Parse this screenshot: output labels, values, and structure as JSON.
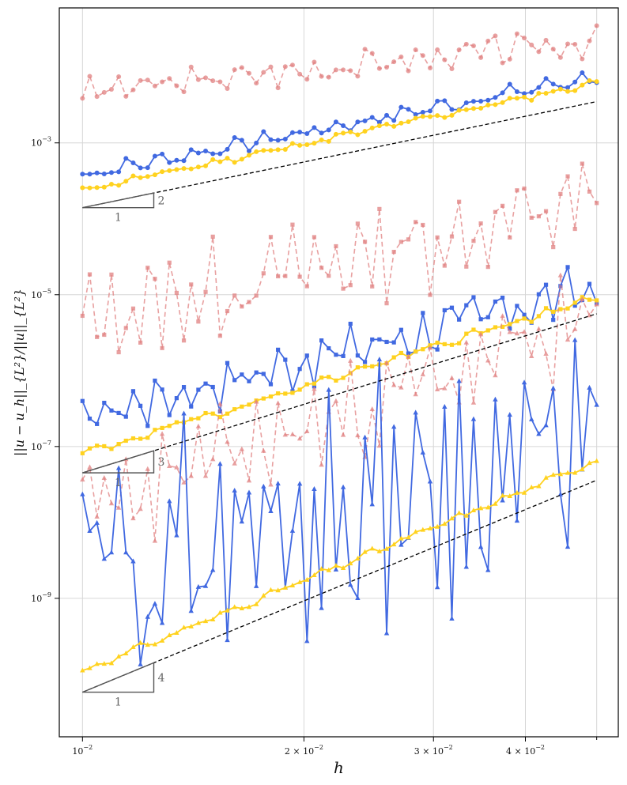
{
  "chart_data": {
    "type": "line",
    "title": "",
    "xlabel": "h",
    "ylabel": "||u − u_h||_{L²}/||u||_{L²}",
    "xscale": "log",
    "yscale": "log",
    "xlim": [
      0.0093,
      0.0535
    ],
    "ylim": [
      1.5e-11,
      0.06
    ],
    "grid": true,
    "colors": {
      "blue": "#4169e1",
      "yellow": "#ffd21f",
      "red": "#e08080",
      "ref": "#000000",
      "triangle": "#555555"
    },
    "x_ticks": [
      {
        "value": 0.01,
        "base": "10",
        "exp": "−2",
        "coef": ""
      },
      {
        "value": 0.02,
        "base": "10",
        "exp": "−2",
        "coef": "2 × "
      },
      {
        "value": 0.03,
        "base": "10",
        "exp": "−2",
        "coef": "3 × "
      },
      {
        "value": 0.04,
        "base": "10",
        "exp": "−2",
        "coef": "4 × "
      }
    ],
    "x_minor_ticks": [
      0.05
    ],
    "y_ticks": [
      {
        "value": 0.001,
        "base": "10",
        "exp": "−3"
      },
      {
        "value": 1e-05,
        "base": "10",
        "exp": "−5"
      },
      {
        "value": 1e-07,
        "base": "10",
        "exp": "−7"
      },
      {
        "value": 1e-09,
        "base": "10",
        "exp": "−9"
      }
    ],
    "n_points": 72,
    "x_start": 0.01,
    "x_end": 0.05,
    "series": [
      {
        "name": "red-circle",
        "marker": "circle",
        "color": "red",
        "dashed": true,
        "start": 0.0046,
        "end": 0.022,
        "slope": 0.9,
        "amp": 0.045,
        "freq": 1.8,
        "seed": 3
      },
      {
        "name": "blue-circle",
        "marker": "circle",
        "color": "blue",
        "dashed": false,
        "start": 0.00038,
        "end": 0.0075,
        "slope": 2,
        "amp": 0.025,
        "freq": 1.3,
        "seed": 7
      },
      {
        "name": "yellow-circle",
        "marker": "circle",
        "color": "yellow",
        "dashed": false,
        "start": 0.00024,
        "end": 0.0062,
        "slope": 2,
        "amp": 0.012,
        "freq": 1.1,
        "seed": 11
      },
      {
        "name": "red-square",
        "marker": "square",
        "color": "red",
        "dashed": true,
        "start": 4.5e-06,
        "end": 0.00017,
        "slope": 2.2,
        "amp": 0.15,
        "freq": 2.2,
        "seed": 13
      },
      {
        "name": "blue-square",
        "marker": "square",
        "color": "blue",
        "dashed": false,
        "start": 2.5e-07,
        "end": 1.2e-05,
        "slope": 3,
        "amp": 0.08,
        "freq": 1.9,
        "seed": 17
      },
      {
        "name": "yellow-square",
        "marker": "square",
        "color": "yellow",
        "dashed": false,
        "start": 8e-08,
        "end": 9.2e-06,
        "slope": 3,
        "amp": 0.015,
        "freq": 1.2,
        "seed": 19
      },
      {
        "name": "red-triangle",
        "marker": "triangle",
        "color": "red",
        "dashed": true,
        "start": 1.4e-08,
        "end": 4.5e-06,
        "slope": 3.4,
        "amp": 0.16,
        "freq": 2.4,
        "seed": 23
      },
      {
        "name": "blue-triangle",
        "marker": "triangle",
        "color": "blue",
        "dashed": false,
        "start": 2.2e-09,
        "end": 1.2e-07,
        "slope": 3,
        "amp": 0.38,
        "freq": 2.8,
        "seed": 29
      },
      {
        "name": "yellow-triangle",
        "marker": "triangle",
        "color": "yellow",
        "dashed": false,
        "start": 1.1e-10,
        "end": 6.5e-08,
        "slope": 4,
        "amp": 0.012,
        "freq": 1.0,
        "seed": 31
      }
    ],
    "reference_lines": [
      {
        "name": "ref-slope-2",
        "slope": 2,
        "x0": 0.01,
        "y0": 0.00014,
        "x1": 0.05,
        "y1": 0.0035
      },
      {
        "name": "ref-slope-3",
        "slope": 3,
        "x0": 0.01,
        "y0": 4.5e-08,
        "x1": 0.05,
        "y1": 5.6e-06
      },
      {
        "name": "ref-slope-4",
        "slope": 4,
        "x0": 0.01,
        "y0": 5.8e-11,
        "x1": 0.05,
        "y1": 3.6e-08
      }
    ],
    "slope_triangles": [
      {
        "name": "triangle-slope-2",
        "x0": 0.01,
        "x1": 0.0125,
        "y0": 0.00014,
        "slope": 2,
        "run_label": "1",
        "rise_label": "2"
      },
      {
        "name": "triangle-slope-3",
        "x0": 0.01,
        "x1": 0.0125,
        "y0": 4.5e-08,
        "slope": 3,
        "run_label": "1",
        "rise_label": "3"
      },
      {
        "name": "triangle-slope-4",
        "x0": 0.01,
        "x1": 0.0125,
        "y0": 5.8e-11,
        "slope": 4,
        "run_label": "1",
        "rise_label": "4"
      }
    ]
  }
}
